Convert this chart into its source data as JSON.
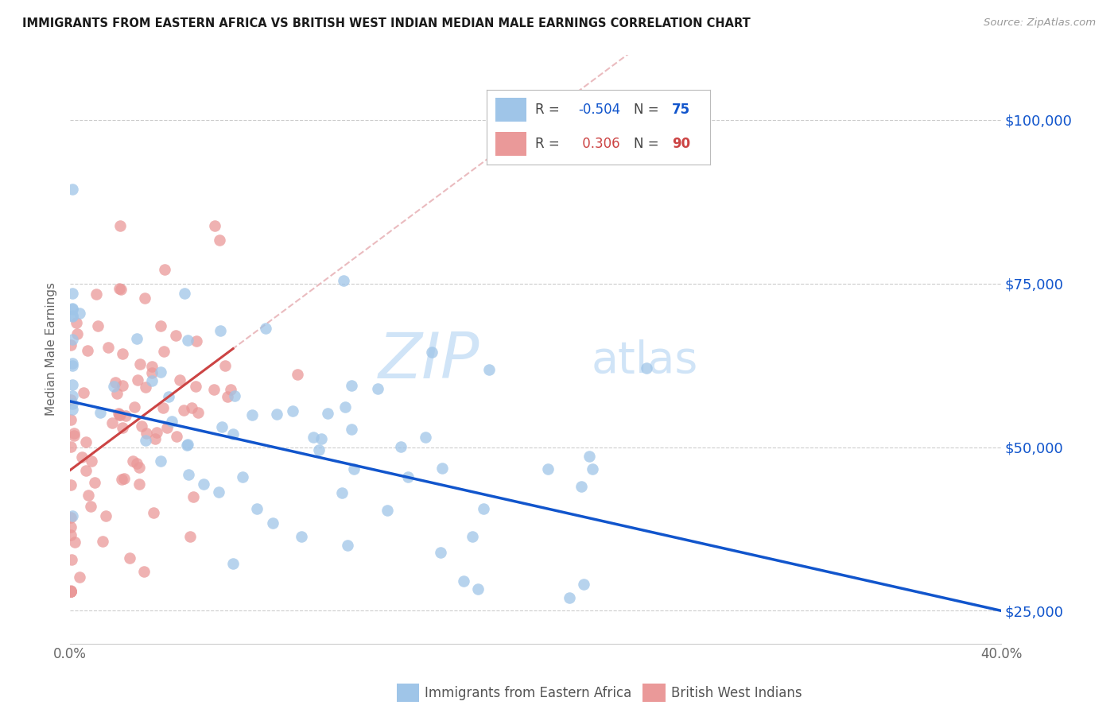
{
  "title": "IMMIGRANTS FROM EASTERN AFRICA VS BRITISH WEST INDIAN MEDIAN MALE EARNINGS CORRELATION CHART",
  "source": "Source: ZipAtlas.com",
  "ylabel": "Median Male Earnings",
  "xlim": [
    0.0,
    0.4
  ],
  "ylim": [
    20000,
    110000
  ],
  "yticks": [
    25000,
    50000,
    75000,
    100000
  ],
  "ytick_labels": [
    "$25,000",
    "$50,000",
    "$75,000",
    "$100,000"
  ],
  "xticks": [
    0.0,
    0.05,
    0.1,
    0.15,
    0.2,
    0.25,
    0.3,
    0.35,
    0.4
  ],
  "blue_color": "#9fc5e8",
  "pink_color": "#ea9999",
  "blue_line_color": "#1155cc",
  "pink_line_color": "#cc4444",
  "pink_dash_color": "#e8b4b8",
  "blue_R": -0.504,
  "blue_N": 75,
  "pink_R": 0.306,
  "pink_N": 90,
  "watermark_zip": "ZIP",
  "watermark_atlas": "atlas",
  "watermark_color": "#d0e4f7",
  "blue_label": "Immigrants from Eastern Africa",
  "pink_label": "British West Indians",
  "background_color": "#ffffff",
  "title_color": "#1a1a1a",
  "axis_color": "#666666",
  "grid_color": "#cccccc"
}
